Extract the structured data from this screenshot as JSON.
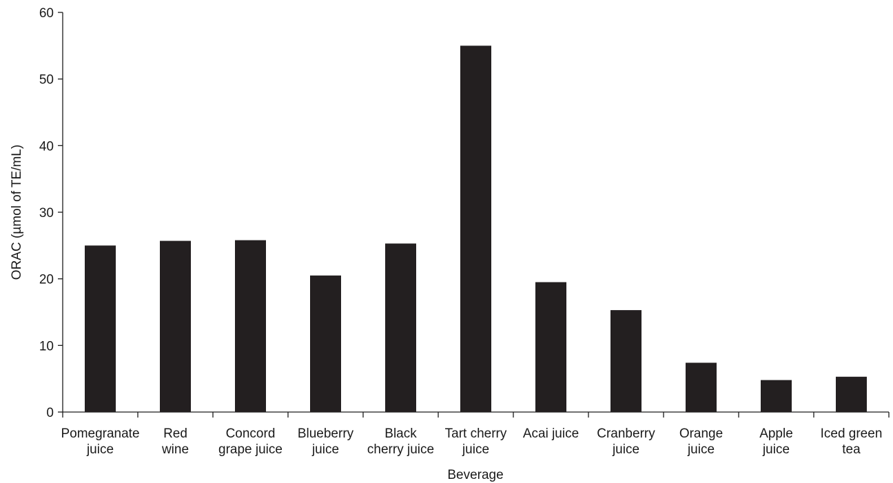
{
  "chart_data": {
    "type": "bar",
    "title": "",
    "xlabel": "Beverage",
    "ylabel": "ORAC (µmol of TE/mL)",
    "ylim": [
      0,
      60
    ],
    "yticks": [
      "0",
      "10",
      "20",
      "30",
      "40",
      "50",
      "60"
    ],
    "grid": false,
    "bar_color": "#231f20",
    "categories": [
      [
        "Pomegranate",
        "juice"
      ],
      [
        "Red",
        "wine"
      ],
      [
        "Concord",
        "grape juice"
      ],
      [
        "Blueberry",
        "juice"
      ],
      [
        "Black",
        "cherry juice"
      ],
      [
        "Tart cherry",
        "juice"
      ],
      [
        "Acai juice"
      ],
      [
        "Cranberry",
        "juice"
      ],
      [
        "Orange",
        "juice"
      ],
      [
        "Apple",
        "juice"
      ],
      [
        "Iced green",
        "tea"
      ]
    ],
    "values": [
      25.0,
      25.7,
      25.8,
      20.5,
      25.3,
      55.0,
      19.5,
      15.3,
      7.4,
      4.8,
      5.3
    ]
  }
}
